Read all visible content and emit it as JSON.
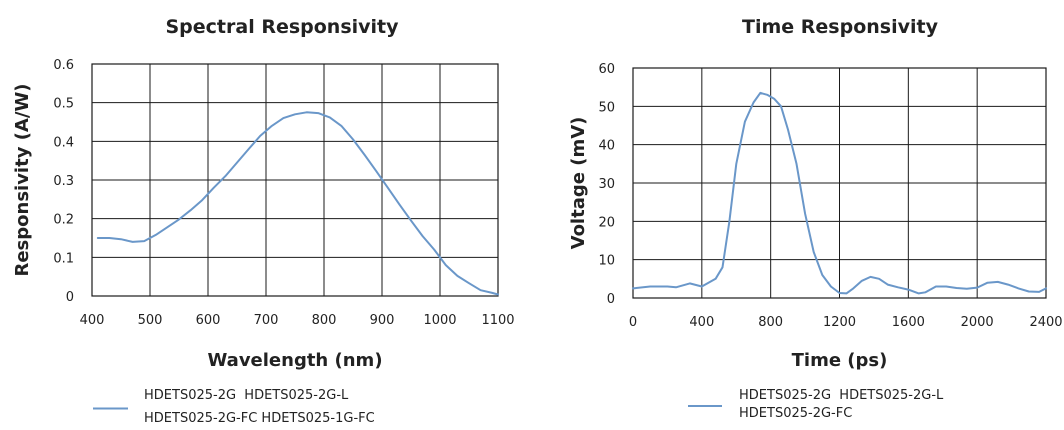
{
  "chart_data": [
    {
      "type": "line",
      "title": "Spectral Responsivity",
      "xlabel": "Wavelength (nm)",
      "ylabel": "Responsivity (A/W)",
      "xlim": [
        400,
        1100
      ],
      "ylim": [
        0,
        0.6
      ],
      "xticks": [
        400,
        500,
        600,
        700,
        800,
        900,
        1000,
        1100
      ],
      "yticks": [
        0,
        0.1,
        0.2,
        0.3,
        0.4,
        0.5,
        0.6
      ],
      "xtick_labels": [
        "400",
        "500",
        "600",
        "700",
        "800",
        "900",
        "1000",
        "1100"
      ],
      "ytick_labels": [
        "0",
        "0.1",
        "0.2",
        "0.3",
        "0.4",
        "0.5",
        "0.6"
      ],
      "grid": true,
      "legend_position": "bottom-left",
      "legend_lines": [
        "HDETS025-2G  HDETS025-2G-L",
        "HDETS025-2G-FC HDETS025-1G-FC"
      ],
      "series_color": "#6a97c9",
      "series": [
        {
          "x": [
            410,
            430,
            450,
            470,
            490,
            510,
            530,
            550,
            570,
            590,
            610,
            630,
            650,
            670,
            690,
            710,
            730,
            750,
            770,
            790,
            810,
            830,
            850,
            870,
            890,
            910,
            930,
            950,
            970,
            990,
            1010,
            1030,
            1050,
            1070,
            1090,
            1100
          ],
          "y": [
            0.15,
            0.15,
            0.147,
            0.14,
            0.142,
            0.158,
            0.178,
            0.198,
            0.222,
            0.248,
            0.28,
            0.31,
            0.345,
            0.38,
            0.414,
            0.44,
            0.46,
            0.47,
            0.475,
            0.473,
            0.462,
            0.44,
            0.405,
            0.365,
            0.323,
            0.28,
            0.237,
            0.195,
            0.155,
            0.12,
            0.08,
            0.052,
            0.033,
            0.015,
            0.008,
            0.004
          ]
        }
      ]
    },
    {
      "type": "line",
      "title": "Time  Responsivity",
      "xlabel": "Time (ps)",
      "ylabel": "Voltage (mV)",
      "xlim": [
        0,
        2400
      ],
      "ylim": [
        0,
        60
      ],
      "xticks": [
        0,
        400,
        800,
        1200,
        1600,
        2000,
        2400
      ],
      "yticks": [
        0,
        10,
        20,
        30,
        40,
        50,
        60
      ],
      "xtick_labels": [
        "0",
        "400",
        "800",
        "1200",
        "1600",
        "2000",
        "2400"
      ],
      "ytick_labels": [
        "0",
        "10",
        "20",
        "30",
        "40",
        "50",
        "60"
      ],
      "grid": true,
      "legend_position": "bottom-left",
      "legend_lines": [
        "HDETS025-2G  HDETS025-2G-L",
        "HDETS025-2G-FC"
      ],
      "series_color": "#6a97c9",
      "series": [
        {
          "x": [
            0,
            100,
            200,
            250,
            330,
            400,
            480,
            520,
            560,
            600,
            650,
            700,
            740,
            780,
            820,
            860,
            900,
            950,
            1000,
            1050,
            1100,
            1150,
            1200,
            1240,
            1280,
            1330,
            1380,
            1430,
            1480,
            1540,
            1600,
            1660,
            1700,
            1760,
            1820,
            1880,
            1940,
            2000,
            2060,
            2120,
            2180,
            2240,
            2300,
            2360,
            2400
          ],
          "y": [
            2.5,
            3,
            3,
            2.8,
            3.8,
            3,
            5,
            8,
            20,
            35,
            46,
            51,
            53.5,
            53,
            52,
            50,
            44,
            35,
            22,
            12,
            6,
            3,
            1.3,
            1.2,
            2.5,
            4.5,
            5.5,
            5,
            3.5,
            2.8,
            2.2,
            1.2,
            1.5,
            3,
            3,
            2.6,
            2.4,
            2.7,
            4,
            4.2,
            3.5,
            2.5,
            1.7,
            1.6,
            2.5
          ]
        }
      ]
    }
  ]
}
